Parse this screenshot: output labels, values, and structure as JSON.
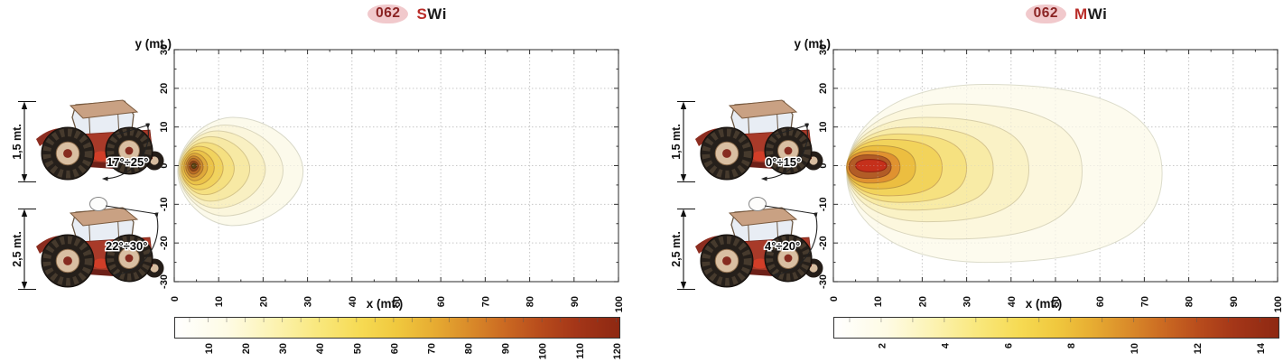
{
  "panels": [
    {
      "title": {
        "badge": "062",
        "model_prefix": "S",
        "model_suffix": "Wi"
      },
      "tractors": [
        {
          "height_label": "1,5 mt.",
          "angle_label": "17°÷25°",
          "beacon": false
        },
        {
          "height_label": "2,5 mt.",
          "angle_label": "22°÷30°",
          "beacon": true
        }
      ]
    },
    {
      "title": {
        "badge": "062",
        "model_prefix": "M",
        "model_suffix": "Wi"
      },
      "tractors": [
        {
          "height_label": "1,5 mt.",
          "angle_label": "0°÷15°",
          "beacon": false
        },
        {
          "height_label": "2,5 mt.",
          "angle_label": "4°÷20°",
          "beacon": true
        }
      ]
    }
  ],
  "colors": {
    "title_badge_bg": "#f1c9cc",
    "title_badge_text": "#8b2424",
    "title_prefix": "#b92c28",
    "grid": "#c9c9c9",
    "axis": "#4d4d4d"
  },
  "colormap": [
    {
      "at": 0.0,
      "color": "#ffffff"
    },
    {
      "at": 0.12,
      "color": "#fefbe4"
    },
    {
      "at": 0.22,
      "color": "#fcf3b4"
    },
    {
      "at": 0.32,
      "color": "#f9e87e"
    },
    {
      "at": 0.42,
      "color": "#f6da52"
    },
    {
      "at": 0.5,
      "color": "#f0c83e"
    },
    {
      "at": 0.58,
      "color": "#e7ad32"
    },
    {
      "at": 0.66,
      "color": "#da8c2a"
    },
    {
      "at": 0.74,
      "color": "#cb6a22"
    },
    {
      "at": 0.82,
      "color": "#b84c1c"
    },
    {
      "at": 0.9,
      "color": "#a43618"
    },
    {
      "at": 1.0,
      "color": "#8e2812"
    }
  ],
  "chart_data": [
    {
      "type": "contour",
      "title": "062 SWi",
      "xlabel": "x (mt.)",
      "ylabel": "y (mt.)",
      "xlim": [
        0,
        100
      ],
      "ylim": [
        -30,
        30
      ],
      "x_ticks": [
        0,
        10,
        20,
        30,
        40,
        50,
        60,
        70,
        80,
        90,
        100
      ],
      "y_ticks": [
        30,
        20,
        10,
        0,
        -10,
        -20,
        -30
      ],
      "grid": true,
      "style": "kite",
      "colorbar": {
        "range": [
          1,
          121
        ],
        "ticks": [
          10,
          20,
          30,
          40,
          50,
          60,
          70,
          80,
          90,
          100,
          110,
          120
        ],
        "minor_step": 5
      },
      "contours": [
        {
          "level": 10,
          "x_min": 0.8,
          "x_max": 29.0,
          "y_top": 12.5,
          "y_bottom": -15.5,
          "fill": "#fcfaeb",
          "stroke": "#d9d9c9"
        },
        {
          "level": 20,
          "x_min": 1.0,
          "x_max": 24.5,
          "y_top": 10.5,
          "y_bottom": -13.0,
          "fill": "#fbf6dc",
          "stroke": "#d9d5bc"
        },
        {
          "level": 30,
          "x_min": 1.0,
          "x_max": 20.5,
          "y_top": 9.0,
          "y_bottom": -11.0,
          "fill": "#f9f0c2",
          "stroke": "#d8cfa8"
        },
        {
          "level": 40,
          "x_min": 1.2,
          "x_max": 17.0,
          "y_top": 7.5,
          "y_bottom": -9.2,
          "fill": "#f7e9a4",
          "stroke": "#d5c68c"
        },
        {
          "level": 50,
          "x_min": 1.5,
          "x_max": 13.5,
          "y_top": 6.0,
          "y_bottom": -7.5,
          "fill": "#f5e081",
          "stroke": "#d2ba70"
        },
        {
          "level": 60,
          "x_min": 1.5,
          "x_max": 11.0,
          "y_top": 5.0,
          "y_bottom": -6.2,
          "fill": "#f1d35e",
          "stroke": "#cdaa58"
        },
        {
          "level": 70,
          "x_min": 1.8,
          "x_max": 9.0,
          "y_top": 4.0,
          "y_bottom": -5.0,
          "fill": "#ebc349",
          "stroke": "#c39a44"
        },
        {
          "level": 80,
          "x_min": 2.2,
          "x_max": 7.5,
          "y_top": 3.2,
          "y_bottom": -3.9,
          "fill": "#dfa93a",
          "stroke": "#b58838"
        },
        {
          "level": 90,
          "x_min": 2.6,
          "x_max": 6.5,
          "y_top": 2.5,
          "y_bottom": -3.0,
          "fill": "#cd8a2e",
          "stroke": "#a5702c"
        },
        {
          "level": 100,
          "x_min": 3.0,
          "x_max": 5.9,
          "y_top": 1.9,
          "y_bottom": -2.2,
          "fill": "#b96a24",
          "stroke": "#956024"
        },
        {
          "level": 110,
          "x_min": 3.4,
          "x_max": 5.4,
          "y_top": 1.2,
          "y_bottom": -1.4,
          "fill": "#93481b",
          "stroke": "#7a4016"
        },
        {
          "level": 120,
          "x_min": 3.9,
          "x_max": 5.0,
          "y_top": 0.6,
          "y_bottom": -0.7,
          "fill": "#5f4513",
          "stroke": "#4a3610"
        }
      ]
    },
    {
      "type": "contour",
      "title": "062 MWi",
      "xlabel": "x (mt.)",
      "ylabel": "y (mt.)",
      "xlim": [
        0,
        100
      ],
      "ylim": [
        -30,
        30
      ],
      "x_ticks": [
        0,
        10,
        20,
        30,
        40,
        50,
        60,
        70,
        80,
        90,
        100
      ],
      "y_ticks": [
        30,
        20,
        10,
        0,
        -10,
        -20,
        -30
      ],
      "grid": true,
      "style": "oval",
      "colorbar": {
        "range": [
          0.5,
          14.6
        ],
        "ticks": [
          2,
          4,
          6,
          8,
          10,
          12,
          14
        ],
        "minor_step": 1
      },
      "contours": [
        {
          "level": 1,
          "x_min": 3.0,
          "x_max": 74.0,
          "y_top": 21.0,
          "y_bottom": -25.0,
          "fill": "#fdfbee",
          "stroke": "#dcdccb"
        },
        {
          "level": 2,
          "x_min": 3.0,
          "x_max": 56.0,
          "y_top": 16.0,
          "y_bottom": -19.0,
          "fill": "#fcf7dd",
          "stroke": "#dad6bd"
        },
        {
          "level": 3,
          "x_min": 3.0,
          "x_max": 44.0,
          "y_top": 12.5,
          "y_bottom": -14.5,
          "fill": "#faf2c6",
          "stroke": "#d8cfa9"
        },
        {
          "level": 4,
          "x_min": 3.0,
          "x_max": 36.0,
          "y_top": 10.0,
          "y_bottom": -11.5,
          "fill": "#f8eba6",
          "stroke": "#d5c48e"
        },
        {
          "level": 5,
          "x_min": 3.0,
          "x_max": 30.0,
          "y_top": 8.2,
          "y_bottom": -9.5,
          "fill": "#f6e180",
          "stroke": "#d2b974"
        },
        {
          "level": 6,
          "x_min": 3.0,
          "x_max": 24.5,
          "y_top": 6.8,
          "y_bottom": -7.8,
          "fill": "#f2d35b",
          "stroke": "#cda85a"
        },
        {
          "level": 8,
          "x_min": 3.0,
          "x_max": 18.5,
          "y_top": 5.2,
          "y_bottom": -6.0,
          "fill": "#ecbe40",
          "stroke": "#bf9a40"
        },
        {
          "level": 10,
          "x_min": 3.0,
          "x_max": 15.0,
          "y_top": 3.8,
          "y_bottom": -4.5,
          "fill": "#e09230",
          "stroke": "#b07c30"
        },
        {
          "level": 12,
          "x_min": 3.5,
          "x_max": 13.0,
          "y_top": 2.8,
          "y_bottom": -3.3,
          "fill": "#b25c26",
          "stroke": "#8f4a20"
        },
        {
          "level": 14,
          "x_min": 5.0,
          "x_max": 12.0,
          "y_top": 1.6,
          "y_bottom": -1.6,
          "fill": "#c5301b",
          "stroke": "#8f2012"
        }
      ]
    }
  ]
}
